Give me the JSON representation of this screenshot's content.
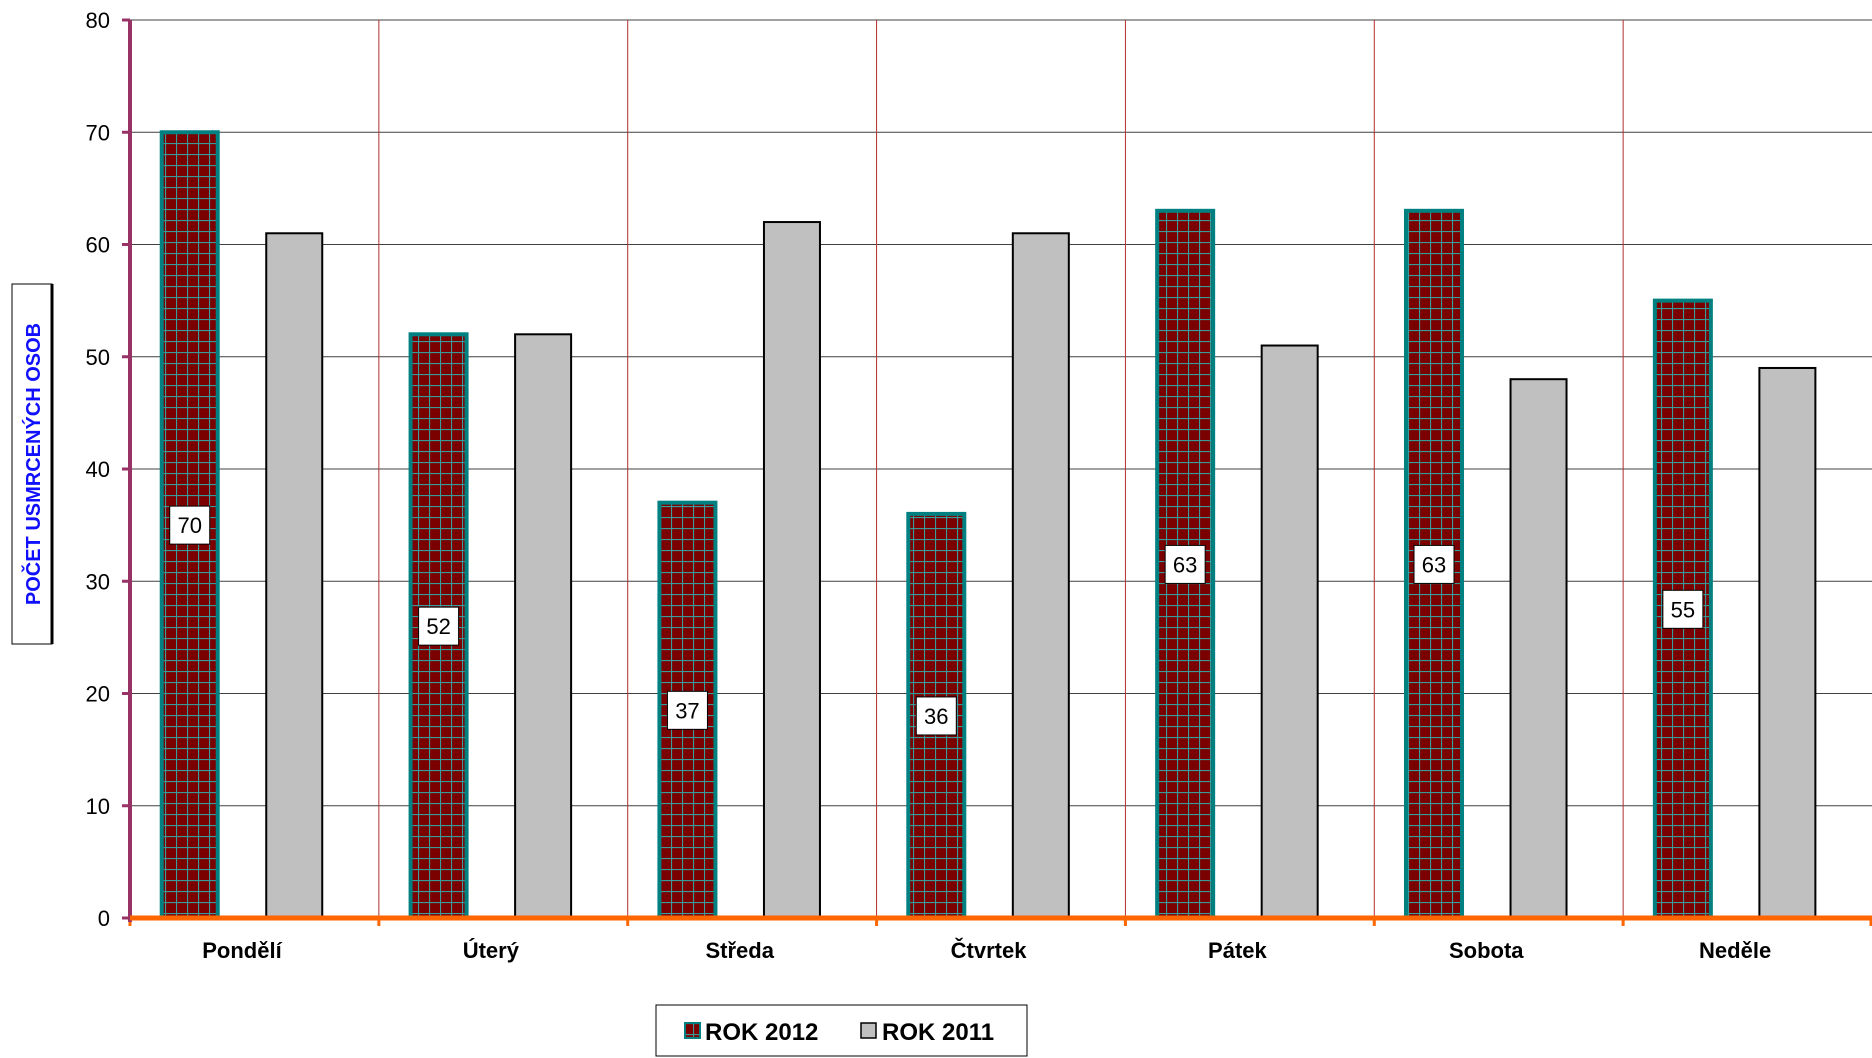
{
  "chart_data": {
    "type": "bar",
    "categories": [
      "Pondělí",
      "Úterý",
      "Středa",
      "Čtvrtek",
      "Pátek",
      "Sobota",
      "Neděle"
    ],
    "series": [
      {
        "name": "ROK 2012",
        "values": [
          70,
          52,
          37,
          36,
          63,
          63,
          55
        ],
        "data_labels": [
          "70",
          "52",
          "37",
          "36",
          "63",
          "63",
          "55"
        ]
      },
      {
        "name": "ROK 2011",
        "values": [
          61,
          52,
          62,
          61,
          51,
          48,
          49
        ]
      }
    ],
    "title": "",
    "xlabel": "",
    "ylabel": "POČET USMRCENÝCH OSOB",
    "ylim": [
      0,
      80
    ],
    "yticks": [
      "0",
      "10",
      "20",
      "30",
      "40",
      "50",
      "60",
      "70",
      "80"
    ],
    "grid": true,
    "legend_position": "bottom",
    "colors": {
      "series_2012_fill": "#7b0000",
      "series_2012_border": "#008080",
      "series_2012_hatch": "#3a9a9a",
      "series_2011_fill": "#c0c0c0",
      "series_2011_border": "#000000",
      "gridline": "#404040",
      "vertical_gridline": "#b03030",
      "y_axis": "#993366",
      "x_axis": "#ff6600",
      "ylabel": "#1010ff"
    }
  }
}
